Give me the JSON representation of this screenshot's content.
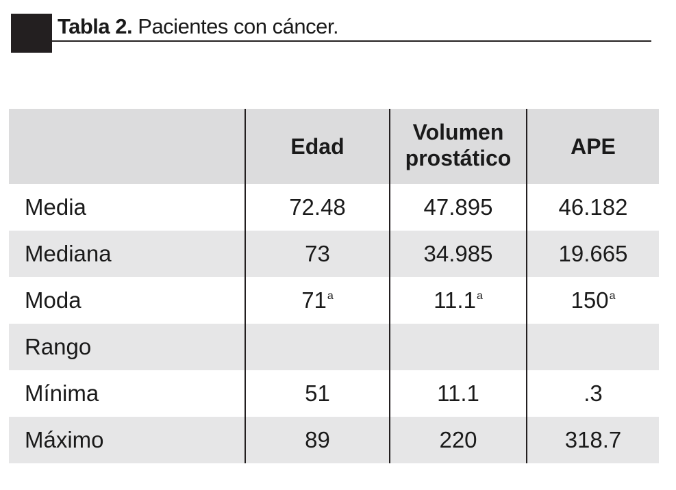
{
  "title": {
    "label": "Tabla 2.",
    "text": "Pacientes con cáncer."
  },
  "table": {
    "headers": [
      "",
      "Edad",
      "Volumen\nprostático",
      "APE"
    ],
    "rows": [
      {
        "label": "Media",
        "cells": [
          {
            "v": "72.48"
          },
          {
            "v": "47.895"
          },
          {
            "v": "46.182"
          }
        ]
      },
      {
        "label": "Mediana",
        "cells": [
          {
            "v": "73"
          },
          {
            "v": "34.985"
          },
          {
            "v": "19.665"
          }
        ]
      },
      {
        "label": "Moda",
        "cells": [
          {
            "v": "71",
            "sup": "a"
          },
          {
            "v": "11.1",
            "sup": "a"
          },
          {
            "v": "150",
            "sup": "a"
          }
        ]
      },
      {
        "label": "Rango",
        "cells": [
          {
            "v": ""
          },
          {
            "v": ""
          },
          {
            "v": ""
          }
        ]
      },
      {
        "label": "Mínima",
        "cells": [
          {
            "v": "51"
          },
          {
            "v": "11.1"
          },
          {
            "v": ".3"
          }
        ]
      },
      {
        "label": "Máximo",
        "cells": [
          {
            "v": "89"
          },
          {
            "v": "220"
          },
          {
            "v": "318.7"
          }
        ]
      }
    ]
  }
}
